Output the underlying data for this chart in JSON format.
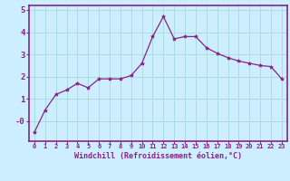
{
  "x": [
    0,
    1,
    2,
    3,
    4,
    5,
    6,
    7,
    8,
    9,
    10,
    11,
    12,
    13,
    14,
    15,
    16,
    17,
    18,
    19,
    20,
    21,
    22,
    23
  ],
  "y": [
    -0.5,
    0.5,
    1.2,
    1.4,
    1.7,
    1.5,
    1.9,
    1.9,
    1.9,
    2.05,
    2.6,
    3.8,
    4.7,
    3.7,
    3.8,
    3.8,
    3.3,
    3.05,
    2.85,
    2.7,
    2.6,
    2.5,
    2.45,
    1.9
  ],
  "line_color": "#882288",
  "marker": "*",
  "marker_size": 3,
  "bg_color": "#cceeff",
  "grid_color": "#aadddd",
  "xlabel": "Windchill (Refroidissement éolien,°C)",
  "xlabel_color": "#882288",
  "tick_color": "#882288",
  "axis_color": "#882288",
  "ylim": [
    -0.9,
    5.2
  ],
  "xlim": [
    -0.5,
    23.5
  ],
  "yticks": [
    0,
    1,
    2,
    3,
    4,
    5
  ],
  "ytick_labels": [
    "-0",
    "1",
    "2",
    "3",
    "4",
    "5"
  ],
  "xticks": [
    0,
    1,
    2,
    3,
    4,
    5,
    6,
    7,
    8,
    9,
    10,
    11,
    12,
    13,
    14,
    15,
    16,
    17,
    18,
    19,
    20,
    21,
    22,
    23
  ]
}
